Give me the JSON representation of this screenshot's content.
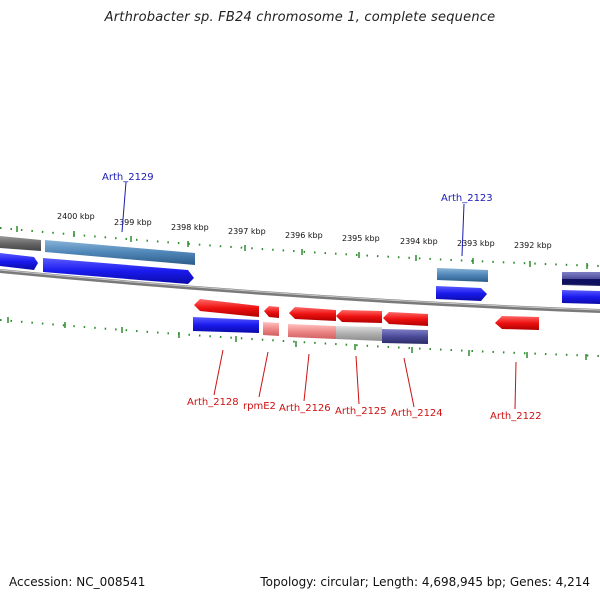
{
  "title": "Arthrobacter sp. FB24 chromosome 1, complete sequence",
  "footer": {
    "accession": "Accession: NC_008541",
    "summary": "Topology: circular; Length: 4,698,945 bp; Genes: 4,214"
  },
  "colors": {
    "backbone": "#808080",
    "tick": "#2e8b2e",
    "label_plus": "#1a1ab4",
    "label_minus": "#cc1111",
    "forward_cds": "#1a1aee",
    "forward_gene": "#4f86b8",
    "reverse_cds": "#ee1111",
    "reverse_rna": "#ee8888",
    "pseudo": "#b0b0b0",
    "other": "#4b4b9a"
  },
  "scale_labels": [
    "2400 kbp",
    "2399 kbp",
    "2398 kbp",
    "2397 kbp",
    "2396 kbp",
    "2395 kbp",
    "2394 kbp",
    "2393 kbp",
    "2392 kbp"
  ],
  "gene_labels_plus": [
    "Arth_2129",
    "Arth_2123"
  ],
  "gene_labels_minus": [
    "Arth_2128",
    "rpmE2",
    "Arth_2126",
    "Arth_2125",
    "Arth_2124",
    "Arth_2122"
  ]
}
